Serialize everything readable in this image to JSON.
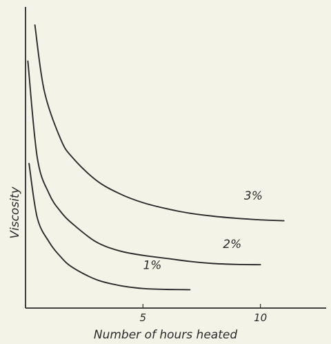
{
  "chart_data": {
    "type": "line",
    "title": "",
    "xlabel": "Number of hours heated",
    "ylabel": "Viscosity",
    "xlim": [
      0,
      12.8
    ],
    "ylim": [
      0,
      100
    ],
    "x_ticks": [
      {
        "value": 5,
        "label": "5"
      },
      {
        "value": 10,
        "label": "10"
      }
    ],
    "grid": false,
    "legend": "none",
    "series": [
      {
        "name": "1%",
        "x": [
          0.15,
          0.5,
          1,
          1.5,
          2,
          3,
          4,
          5,
          6,
          7
        ],
        "y": [
          48,
          30,
          22,
          17,
          13.5,
          9.5,
          7.5,
          6.5,
          6.2,
          6.1
        ],
        "label_at": {
          "x": 5.4,
          "y": 13
        }
      },
      {
        "name": "2%",
        "x": [
          0.1,
          0.5,
          1,
          1.5,
          2,
          3,
          4,
          5,
          6,
          7,
          8,
          9,
          10
        ],
        "y": [
          82,
          50,
          38,
          32,
          28,
          22,
          19,
          17.5,
          16.5,
          15.5,
          14.8,
          14.5,
          14.4
        ],
        "label_at": {
          "x": 8.8,
          "y": 20
        }
      },
      {
        "name": "3%",
        "x": [
          0.4,
          0.8,
          1.5,
          2,
          3,
          4,
          5,
          6,
          7,
          8,
          9,
          10,
          11
        ],
        "y": [
          94,
          72,
          56,
          50,
          42.5,
          38,
          35,
          33,
          31.5,
          30.5,
          29.8,
          29.3,
          29.0
        ],
        "label_at": {
          "x": 9.7,
          "y": 36
        }
      }
    ]
  }
}
